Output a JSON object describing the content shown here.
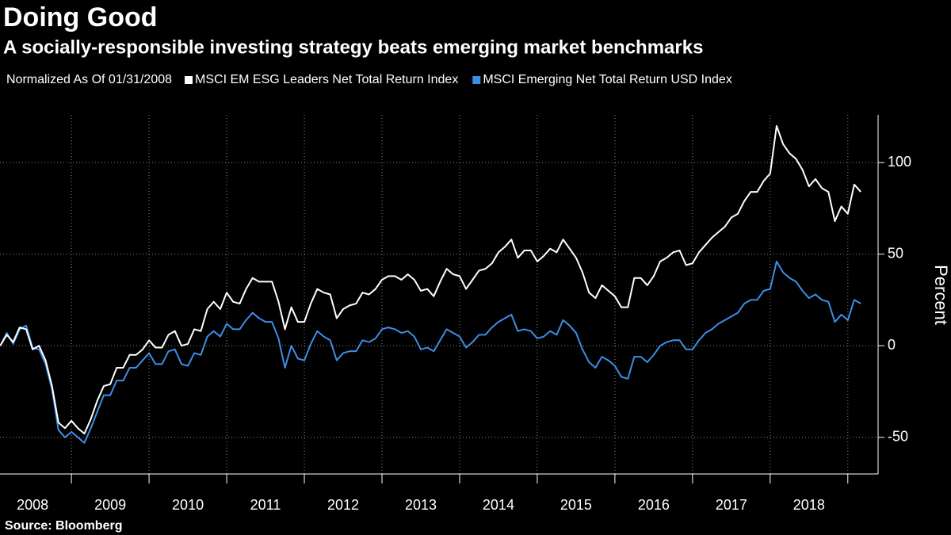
{
  "chart_data": {
    "type": "line",
    "title": "Doing Good",
    "subtitle": "A socially-responsible investing strategy beats emerging market benchmarks",
    "legend_title": "Normalized As Of 01/31/2008",
    "y_label": "Percent",
    "source": "Source: Bloomberg",
    "xlim": [
      2008.08,
      2019.39
    ],
    "ylim": [
      -70,
      126
    ],
    "yticks": [
      -50,
      0,
      50,
      100
    ],
    "xticks": [
      {
        "value": 2008.5,
        "label": "2008"
      },
      {
        "value": 2009.5,
        "label": "2009"
      },
      {
        "value": 2010.5,
        "label": "2010"
      },
      {
        "value": 2011.5,
        "label": "2011"
      },
      {
        "value": 2012.5,
        "label": "2012"
      },
      {
        "value": 2013.5,
        "label": "2013"
      },
      {
        "value": 2014.5,
        "label": "2014"
      },
      {
        "value": 2015.5,
        "label": "2015"
      },
      {
        "value": 2016.5,
        "label": "2016"
      },
      {
        "value": 2017.5,
        "label": "2017"
      },
      {
        "value": 2018.5,
        "label": "2018"
      }
    ],
    "x_gridlines": [
      2009,
      2010,
      2011,
      2012,
      2013,
      2014,
      2015,
      2016,
      2017,
      2018,
      2019
    ],
    "grid": true,
    "x": [
      2008.083,
      2008.167,
      2008.25,
      2008.333,
      2008.417,
      2008.5,
      2008.583,
      2008.667,
      2008.75,
      2008.833,
      2008.917,
      2009,
      2009.083,
      2009.167,
      2009.25,
      2009.333,
      2009.417,
      2009.5,
      2009.583,
      2009.667,
      2009.75,
      2009.833,
      2009.917,
      2010,
      2010.083,
      2010.167,
      2010.25,
      2010.333,
      2010.417,
      2010.5,
      2010.583,
      2010.667,
      2010.75,
      2010.833,
      2010.917,
      2011,
      2011.083,
      2011.167,
      2011.25,
      2011.333,
      2011.417,
      2011.5,
      2011.583,
      2011.667,
      2011.75,
      2011.833,
      2011.917,
      2012,
      2012.083,
      2012.167,
      2012.25,
      2012.333,
      2012.417,
      2012.5,
      2012.583,
      2012.667,
      2012.75,
      2012.833,
      2012.917,
      2013,
      2013.083,
      2013.167,
      2013.25,
      2013.333,
      2013.417,
      2013.5,
      2013.583,
      2013.667,
      2013.75,
      2013.833,
      2013.917,
      2014,
      2014.083,
      2014.167,
      2014.25,
      2014.333,
      2014.417,
      2014.5,
      2014.583,
      2014.667,
      2014.75,
      2014.833,
      2014.917,
      2015,
      2015.083,
      2015.167,
      2015.25,
      2015.333,
      2015.417,
      2015.5,
      2015.583,
      2015.667,
      2015.75,
      2015.833,
      2015.917,
      2016,
      2016.083,
      2016.167,
      2016.25,
      2016.333,
      2016.417,
      2016.5,
      2016.583,
      2016.667,
      2016.75,
      2016.833,
      2016.917,
      2017,
      2017.083,
      2017.167,
      2017.25,
      2017.333,
      2017.417,
      2017.5,
      2017.583,
      2017.667,
      2017.75,
      2017.833,
      2017.917,
      2018,
      2018.083,
      2018.167,
      2018.25,
      2018.333,
      2018.417,
      2018.5,
      2018.583,
      2018.667,
      2018.75,
      2018.833,
      2018.917,
      2019,
      2019.083,
      2019.167
    ],
    "series": [
      {
        "name": "MSCI EM ESG Leaders Net Total Return Index",
        "color": "#ffffff",
        "values": [
          0,
          6,
          2,
          10,
          9,
          -2,
          0,
          -8,
          -22,
          -42,
          -45,
          -41,
          -45,
          -48,
          -40,
          -30,
          -22,
          -21,
          -12,
          -12,
          -5,
          -5,
          -2,
          3,
          -1,
          -1,
          6,
          8,
          0,
          1,
          9,
          8,
          20,
          24,
          20,
          29,
          24,
          23,
          31,
          37,
          35,
          35,
          35,
          24,
          9,
          21,
          13,
          13,
          23,
          31,
          29,
          28,
          15,
          20,
          22,
          23,
          29,
          28,
          31,
          36,
          38,
          38,
          36,
          39,
          36,
          30,
          31,
          27,
          35,
          42,
          39,
          38,
          31,
          36,
          41,
          42,
          45,
          51,
          54,
          58,
          48,
          52,
          52,
          46,
          49,
          53,
          51,
          58,
          53,
          48,
          40,
          29,
          26,
          33,
          30,
          27,
          21,
          21,
          37,
          37,
          33,
          38,
          46,
          48,
          51,
          52,
          44,
          45,
          51,
          55,
          59,
          62,
          65,
          70,
          72,
          79,
          84,
          84,
          90,
          94,
          120,
          110,
          105,
          102,
          96,
          87,
          91,
          86,
          84,
          68,
          76,
          72,
          88,
          84
        ]
      },
      {
        "name": "MSCI Emerging Net Total Return USD Index",
        "color": "#3d8ee6",
        "values": [
          0,
          7,
          1,
          9,
          11,
          -1,
          -2,
          -10,
          -24,
          -46,
          -50,
          -47,
          -50,
          -53,
          -45,
          -36,
          -27,
          -27,
          -19,
          -19,
          -12,
          -12,
          -8,
          -4,
          -10,
          -10,
          -3,
          -2,
          -10,
          -11,
          -4,
          -5,
          5,
          8,
          5,
          12,
          9,
          9,
          14,
          18,
          15,
          13,
          13,
          4,
          -12,
          0,
          -7,
          -8,
          1,
          8,
          5,
          3,
          -8,
          -4,
          -3,
          -3,
          3,
          2,
          4,
          9,
          10,
          9,
          7,
          8,
          5,
          -2,
          -1,
          -3,
          3,
          9,
          7,
          5,
          -1,
          2,
          6,
          6,
          10,
          13,
          15,
          17,
          8,
          9,
          8,
          4,
          5,
          8,
          6,
          14,
          11,
          7,
          -2,
          -9,
          -12,
          -6,
          -8,
          -11,
          -17,
          -18,
          -6,
          -6,
          -9,
          -5,
          0,
          2,
          3,
          3,
          -2,
          -2,
          3,
          7,
          9,
          12,
          14,
          16,
          18,
          23,
          25,
          25,
          30,
          31,
          46,
          40,
          37,
          35,
          30,
          26,
          28,
          25,
          24,
          13,
          17,
          14,
          25,
          23
        ]
      }
    ]
  }
}
